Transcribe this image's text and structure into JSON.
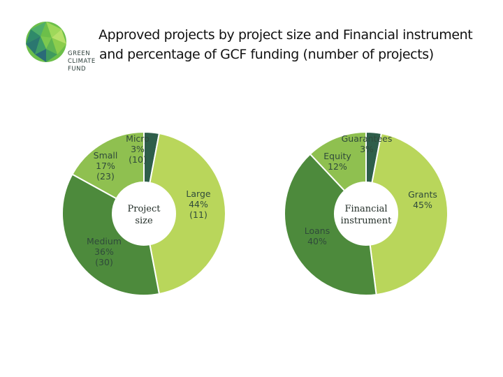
{
  "logo": {
    "icon": "green-globe-icon",
    "lines": [
      "GREEN",
      "CLIMATE",
      "FUND"
    ]
  },
  "title": {
    "line1": "Approved projects by project size and Financial instrument",
    "line2": "and percentage of GCF funding (number of projects)"
  },
  "chart_data": [
    {
      "type": "pie",
      "center_label": [
        "Project",
        "size"
      ],
      "categories": [
        "Micro",
        "Large",
        "Medium",
        "Small"
      ],
      "values": [
        3,
        44,
        36,
        17
      ],
      "percent_labels": [
        "3%",
        "44%",
        "36%",
        "17%"
      ],
      "counts": [
        10,
        11,
        30,
        23
      ],
      "count_labels": [
        "(10)",
        "(11)",
        "(30)",
        "(23)"
      ],
      "colors": [
        "#2e5e4a",
        "#b9d65b",
        "#4d8a3c",
        "#8fc050"
      ]
    },
    {
      "type": "pie",
      "center_label": [
        "Financial",
        "instrument"
      ],
      "categories": [
        "Guarantees",
        "Grants",
        "Loans",
        "Equity"
      ],
      "values": [
        3,
        45,
        40,
        12
      ],
      "percent_labels": [
        "3%",
        "45%",
        "40%",
        "12%"
      ],
      "colors": [
        "#2e5e4a",
        "#b9d65b",
        "#4d8a3c",
        "#8fc050"
      ]
    }
  ]
}
